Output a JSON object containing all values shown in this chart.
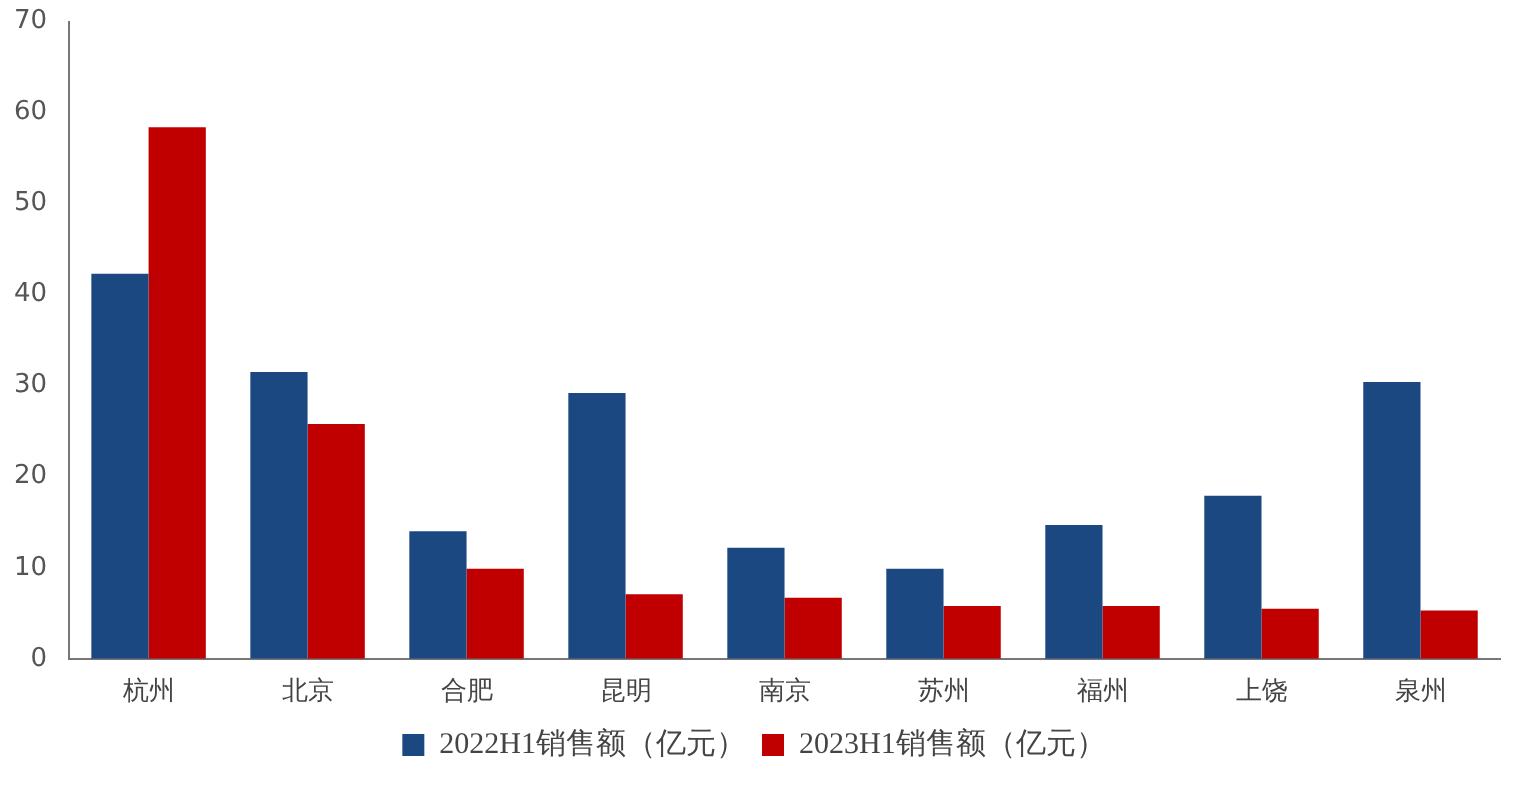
{
  "chart_data": {
    "type": "bar",
    "categories": [
      "杭州",
      "北京",
      "合肥",
      "昆明",
      "南京",
      "苏州",
      "福州",
      "上饶",
      "泉州"
    ],
    "series": [
      {
        "name": "2022H1销售额（亿元）",
        "color": "#1c4882",
        "values": [
          42.3,
          31.5,
          14.0,
          29.2,
          12.2,
          9.9,
          14.7,
          17.9,
          30.4
        ]
      },
      {
        "name": "2023H1销售额（亿元）",
        "color": "#c00000",
        "values": [
          58.4,
          25.8,
          9.9,
          7.1,
          6.7,
          5.8,
          5.8,
          5.5,
          5.3
        ]
      }
    ],
    "ylim": [
      0,
      70
    ],
    "yticks": [
      0,
      10,
      20,
      30,
      40,
      50,
      60,
      70
    ],
    "grid": false,
    "legend": "bottom"
  }
}
